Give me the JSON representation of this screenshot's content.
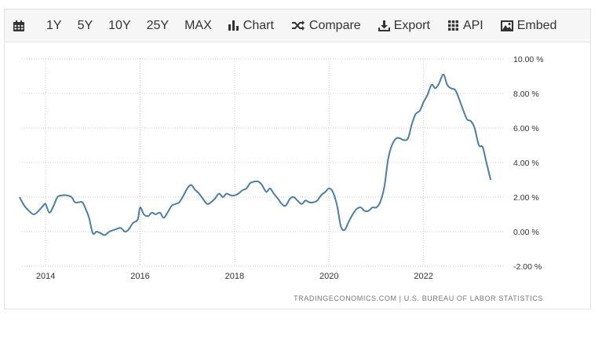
{
  "toolbar": {
    "calendar_icon": "calendar-icon",
    "ranges": [
      "1Y",
      "5Y",
      "10Y",
      "25Y",
      "MAX"
    ],
    "chart_label": "Chart",
    "compare_label": "Compare",
    "export_label": "Export",
    "api_label": "API",
    "embed_label": "Embed"
  },
  "source_text": "TRADINGECONOMICS.COM  |  U.S. BUREAU OF LABOR STATISTICS",
  "colors": {
    "line": "#4a7ea8",
    "grid": "#cfcfcf",
    "text": "#333333"
  },
  "chart_data": {
    "type": "line",
    "title": "",
    "xlabel": "",
    "ylabel": "",
    "grid": true,
    "ylim": [
      -2,
      10
    ],
    "yticks": [
      -2,
      0,
      2,
      4,
      6,
      8,
      10
    ],
    "ytick_labels": [
      "-2.00 %",
      "0.00 %",
      "2.00 %",
      "4.00 %",
      "6.00 %",
      "8.00 %",
      "10.00 %"
    ],
    "xticks": [
      2014,
      2016,
      2018,
      2020,
      2022
    ],
    "xtick_labels": [
      "2014",
      "2016",
      "2018",
      "2020",
      "2022"
    ],
    "xlim": [
      2013.5,
      2023.7
    ],
    "series": [
      {
        "values": [
          [
            2013.45,
            2.0
          ],
          [
            2013.55,
            1.5
          ],
          [
            2013.65,
            1.2
          ],
          [
            2013.75,
            1.0
          ],
          [
            2013.85,
            1.2
          ],
          [
            2013.95,
            1.5
          ],
          [
            2014.0,
            1.6
          ],
          [
            2014.08,
            1.1
          ],
          [
            2014.17,
            1.5
          ],
          [
            2014.25,
            2.0
          ],
          [
            2014.35,
            2.1
          ],
          [
            2014.45,
            2.1
          ],
          [
            2014.55,
            2.0
          ],
          [
            2014.62,
            1.7
          ],
          [
            2014.7,
            1.7
          ],
          [
            2014.78,
            1.7
          ],
          [
            2014.85,
            1.3
          ],
          [
            2014.92,
            0.8
          ],
          [
            2015.0,
            -0.1
          ],
          [
            2015.08,
            0.0
          ],
          [
            2015.17,
            -0.1
          ],
          [
            2015.25,
            -0.2
          ],
          [
            2015.35,
            0.0
          ],
          [
            2015.45,
            0.1
          ],
          [
            2015.55,
            0.2
          ],
          [
            2015.6,
            0.2
          ],
          [
            2015.68,
            0.0
          ],
          [
            2015.75,
            0.1
          ],
          [
            2015.85,
            0.5
          ],
          [
            2015.95,
            0.7
          ],
          [
            2016.0,
            1.4
          ],
          [
            2016.08,
            1.0
          ],
          [
            2016.17,
            0.9
          ],
          [
            2016.25,
            1.1
          ],
          [
            2016.33,
            1.0
          ],
          [
            2016.42,
            1.1
          ],
          [
            2016.5,
            0.8
          ],
          [
            2016.58,
            1.1
          ],
          [
            2016.67,
            1.5
          ],
          [
            2016.75,
            1.6
          ],
          [
            2016.83,
            1.7
          ],
          [
            2016.92,
            2.1
          ],
          [
            2017.0,
            2.5
          ],
          [
            2017.08,
            2.7
          ],
          [
            2017.17,
            2.4
          ],
          [
            2017.25,
            2.2
          ],
          [
            2017.33,
            1.9
          ],
          [
            2017.42,
            1.6
          ],
          [
            2017.5,
            1.7
          ],
          [
            2017.58,
            1.9
          ],
          [
            2017.67,
            2.2
          ],
          [
            2017.75,
            2.0
          ],
          [
            2017.83,
            2.2
          ],
          [
            2017.92,
            2.1
          ],
          [
            2018.0,
            2.1
          ],
          [
            2018.08,
            2.2
          ],
          [
            2018.17,
            2.4
          ],
          [
            2018.25,
            2.5
          ],
          [
            2018.33,
            2.8
          ],
          [
            2018.42,
            2.9
          ],
          [
            2018.5,
            2.9
          ],
          [
            2018.58,
            2.7
          ],
          [
            2018.67,
            2.3
          ],
          [
            2018.75,
            2.5
          ],
          [
            2018.83,
            2.2
          ],
          [
            2018.92,
            1.9
          ],
          [
            2019.0,
            1.6
          ],
          [
            2019.08,
            1.5
          ],
          [
            2019.17,
            1.9
          ],
          [
            2019.25,
            2.0
          ],
          [
            2019.33,
            1.8
          ],
          [
            2019.42,
            1.6
          ],
          [
            2019.5,
            1.8
          ],
          [
            2019.58,
            1.7
          ],
          [
            2019.67,
            1.7
          ],
          [
            2019.75,
            1.8
          ],
          [
            2019.83,
            2.1
          ],
          [
            2019.92,
            2.3
          ],
          [
            2020.0,
            2.5
          ],
          [
            2020.08,
            2.3
          ],
          [
            2020.17,
            1.5
          ],
          [
            2020.25,
            0.3
          ],
          [
            2020.33,
            0.1
          ],
          [
            2020.42,
            0.6
          ],
          [
            2020.5,
            1.0
          ],
          [
            2020.58,
            1.3
          ],
          [
            2020.67,
            1.4
          ],
          [
            2020.75,
            1.2
          ],
          [
            2020.83,
            1.2
          ],
          [
            2020.92,
            1.4
          ],
          [
            2021.0,
            1.4
          ],
          [
            2021.08,
            1.7
          ],
          [
            2021.17,
            2.6
          ],
          [
            2021.25,
            4.2
          ],
          [
            2021.33,
            5.0
          ],
          [
            2021.42,
            5.4
          ],
          [
            2021.5,
            5.4
          ],
          [
            2021.58,
            5.3
          ],
          [
            2021.67,
            5.4
          ],
          [
            2021.75,
            6.2
          ],
          [
            2021.83,
            6.8
          ],
          [
            2021.92,
            7.0
          ],
          [
            2022.0,
            7.5
          ],
          [
            2022.08,
            7.9
          ],
          [
            2022.17,
            8.5
          ],
          [
            2022.25,
            8.3
          ],
          [
            2022.33,
            8.6
          ],
          [
            2022.42,
            9.1
          ],
          [
            2022.5,
            8.5
          ],
          [
            2022.58,
            8.3
          ],
          [
            2022.67,
            8.2
          ],
          [
            2022.75,
            7.7
          ],
          [
            2022.83,
            7.1
          ],
          [
            2022.92,
            6.5
          ],
          [
            2023.0,
            6.4
          ],
          [
            2023.08,
            6.0
          ],
          [
            2023.17,
            5.0
          ],
          [
            2023.25,
            4.9
          ],
          [
            2023.33,
            4.0
          ],
          [
            2023.42,
            3.0
          ]
        ]
      }
    ]
  }
}
